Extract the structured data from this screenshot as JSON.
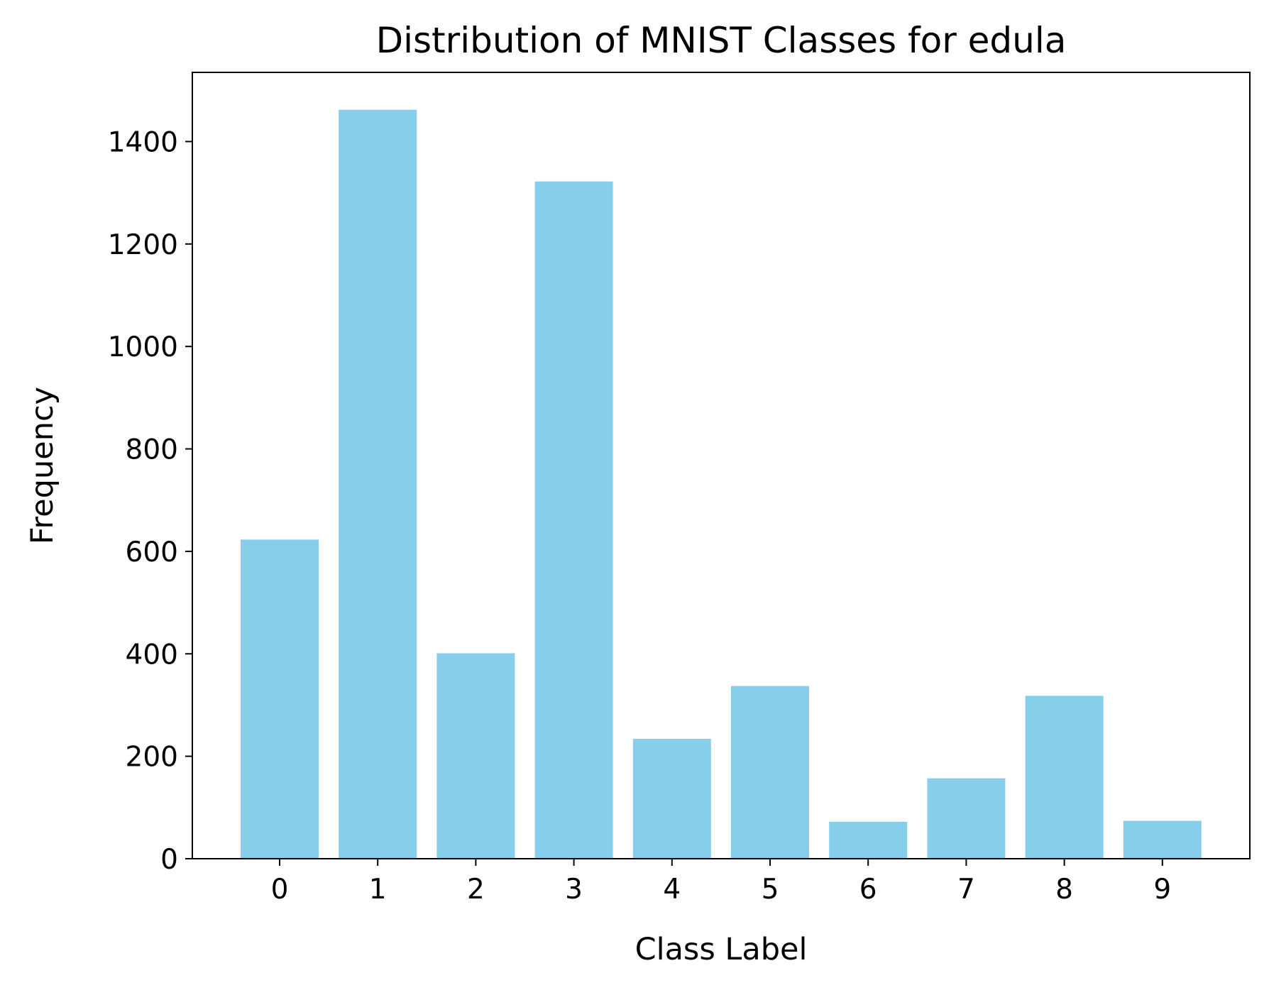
{
  "chart_data": {
    "type": "bar",
    "title": "Distribution of MNIST Classes for edula",
    "xlabel": "Class Label",
    "ylabel": "Frequency",
    "categories": [
      "0",
      "1",
      "2",
      "3",
      "4",
      "5",
      "6",
      "7",
      "8",
      "9"
    ],
    "values": [
      623,
      1462,
      401,
      1322,
      234,
      337,
      72,
      157,
      318,
      74
    ],
    "ylim": [
      0,
      1535
    ],
    "yticks": [
      "0",
      "200",
      "400",
      "600",
      "800",
      "1000",
      "1200",
      "1400"
    ],
    "bar_color": "#87CEEB",
    "grid": false,
    "legend": "none"
  }
}
